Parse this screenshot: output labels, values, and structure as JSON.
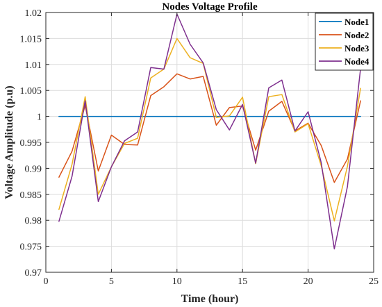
{
  "chart_data": {
    "type": "line",
    "title": "Nodes Voltage Profile",
    "xlabel": "Time (hour)",
    "ylabel": "Voltage Amplitude (p.u)",
    "xlim": [
      0,
      25
    ],
    "ylim": [
      0.97,
      1.02
    ],
    "xticks": [
      "0",
      "5",
      "10",
      "15",
      "20",
      "25"
    ],
    "xtick_values": [
      0,
      5,
      10,
      15,
      20,
      25
    ],
    "yticks": [
      "0.97",
      "0.975",
      "0.98",
      "0.985",
      "0.99",
      "0.995",
      "1",
      "1.005",
      "1.01",
      "1.015",
      "1.02"
    ],
    "ytick_values": [
      0.97,
      0.975,
      0.98,
      0.985,
      0.99,
      0.995,
      1.0,
      1.005,
      1.01,
      1.015,
      1.02
    ],
    "grid": true,
    "legend_position": "top-right",
    "x": [
      1,
      2,
      3,
      4,
      5,
      6,
      7,
      8,
      9,
      10,
      11,
      12,
      13,
      14,
      15,
      16,
      17,
      18,
      19,
      20,
      21,
      22,
      23,
      24
    ],
    "series": [
      {
        "name": "Node1",
        "color": "#0072BD",
        "values": [
          1.0,
          1.0,
          1.0,
          1.0,
          1.0,
          1.0,
          1.0,
          1.0,
          1.0,
          1.0,
          1.0,
          1.0,
          1.0,
          1.0,
          1.0,
          1.0,
          1.0,
          1.0,
          1.0,
          1.0,
          1.0,
          1.0,
          1.0,
          1.0
        ]
      },
      {
        "name": "Node2",
        "color": "#D95319",
        "values": [
          0.9883,
          0.9933,
          1.0021,
          0.9895,
          0.9964,
          0.9946,
          0.9945,
          1.004,
          1.0057,
          1.0082,
          1.0072,
          1.0077,
          0.9983,
          1.0017,
          1.002,
          0.9935,
          1.001,
          1.0029,
          0.9972,
          0.9987,
          0.9944,
          0.9873,
          0.9918,
          1.003
        ]
      },
      {
        "name": "Node3",
        "color": "#EDB120",
        "values": [
          0.9821,
          0.9908,
          1.0038,
          0.985,
          0.9903,
          0.9948,
          0.9958,
          1.0074,
          1.0091,
          1.015,
          1.0113,
          1.0102,
          0.9998,
          1.0001,
          1.0037,
          0.9909,
          1.0038,
          1.0042,
          0.997,
          0.9986,
          0.9905,
          0.9799,
          0.9904,
          1.0054
        ]
      },
      {
        "name": "Node4",
        "color": "#7E2F8E",
        "values": [
          0.9798,
          0.9885,
          1.003,
          0.9836,
          0.9903,
          0.9953,
          0.997,
          1.0094,
          1.0091,
          1.0197,
          1.0139,
          1.0103,
          1.0013,
          0.9974,
          1.0023,
          0.991,
          1.0055,
          1.007,
          0.9972,
          1.0009,
          0.9911,
          0.9745,
          0.9865,
          1.0092
        ]
      }
    ]
  }
}
